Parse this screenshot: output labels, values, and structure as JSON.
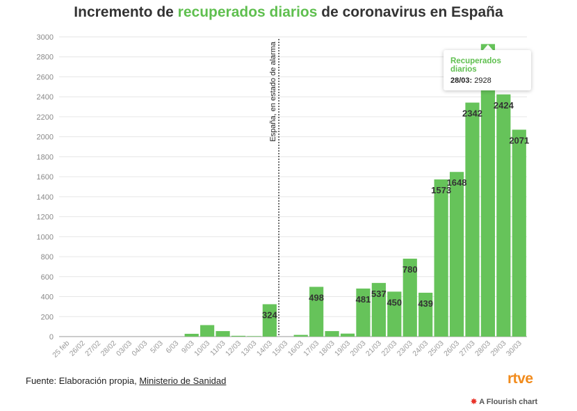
{
  "title": {
    "prefix": "Incremento de ",
    "highlight": "recuperados diarios",
    "suffix": " de coronavirus en España"
  },
  "source": {
    "prefix": "Fuente: Elaboración propia, ",
    "link": "Ministerio de Sanidad"
  },
  "logo": "rtve",
  "flourish_label": "A Flourish chart",
  "tooltip": {
    "title": "Recuperados diarios",
    "date": "28/03:",
    "value": "2928"
  },
  "colors": {
    "bar": "#66c35a",
    "highlight": "#5fbf4f",
    "logo": "#f18b1c"
  },
  "chart_data": {
    "type": "bar",
    "title": "Incremento de recuperados diarios de coronavirus en España",
    "xlabel": "",
    "ylabel": "",
    "ylim": [
      0,
      3000
    ],
    "yticks": [
      0,
      200,
      400,
      600,
      800,
      1000,
      1200,
      1400,
      1600,
      1800,
      2000,
      2200,
      2400,
      2600,
      2800,
      3000
    ],
    "grid": true,
    "categories": [
      "25 feb",
      "26/02",
      "27/02",
      "28/02",
      "03/03",
      "04/03",
      "5/03",
      "6/03",
      "9/03",
      "10/03",
      "11/03",
      "12/03",
      "13/03",
      "14/03",
      "15/03",
      "16/03",
      "17/03",
      "18/03",
      "19/03",
      "20/03",
      "21/03",
      "22/03",
      "23/03",
      "24/03",
      "25/03",
      "26/03",
      "27/03",
      "28/03",
      "29/03",
      "30/03"
    ],
    "values": [
      0,
      0,
      0,
      0,
      0,
      0,
      0,
      0,
      28,
      115,
      55,
      8,
      5,
      324,
      0,
      17,
      498,
      55,
      30,
      481,
      537,
      450,
      780,
      439,
      1573,
      1648,
      2342,
      2928,
      2424,
      2071
    ],
    "data_labels": [
      "",
      "",
      "",
      "",
      "",
      "",
      "",
      "",
      "",
      "",
      "",
      "",
      "",
      "324",
      "",
      "",
      "498",
      "",
      "",
      "481",
      "537",
      "450",
      "780",
      "439",
      "1573",
      "1648",
      "2342",
      "2928",
      "2424",
      "2071"
    ],
    "annotation": {
      "text": "España, en estado de alarma",
      "between": [
        "14/03",
        "15/03"
      ]
    }
  }
}
